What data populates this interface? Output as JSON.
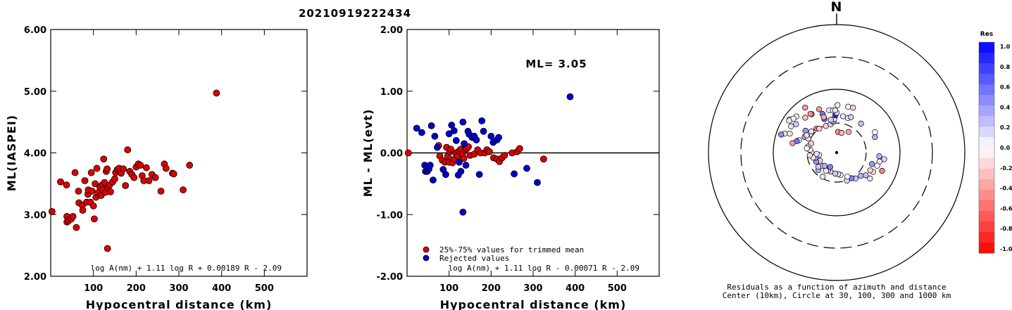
{
  "title": "20210919222434",
  "chart_data": [
    {
      "type": "scatter",
      "ylabel": "ML(IASPEI)",
      "xlabel": "Hypocentral distance (km)",
      "xlim": [
        0,
        600
      ],
      "ylim": [
        2.0,
        6.0
      ],
      "xticks": [
        "100",
        "200",
        "300",
        "400",
        "500"
      ],
      "yticks": [
        "2.00",
        "3.00",
        "4.00",
        "5.00",
        "6.00"
      ],
      "formula": "log A(nm) + 1.11 log R + 0.00189 R - 2.09",
      "color": "#dd0000",
      "points": [
        [
          3,
          3.05
        ],
        [
          23,
          3.53
        ],
        [
          37,
          3.48
        ],
        [
          38,
          2.97
        ],
        [
          38,
          2.88
        ],
        [
          42,
          2.9
        ],
        [
          48,
          2.93
        ],
        [
          52,
          2.97
        ],
        [
          57,
          3.68
        ],
        [
          60,
          2.79
        ],
        [
          65,
          3.38
        ],
        [
          66,
          3.19
        ],
        [
          74,
          3.15
        ],
        [
          75,
          3.07
        ],
        [
          80,
          3.55
        ],
        [
          84,
          3.2
        ],
        [
          87,
          3.33
        ],
        [
          88,
          3.4
        ],
        [
          93,
          3.2
        ],
        [
          95,
          3.68
        ],
        [
          97,
          3.38
        ],
        [
          100,
          3.14
        ],
        [
          102,
          2.93
        ],
        [
          104,
          3.5
        ],
        [
          106,
          3.28
        ],
        [
          108,
          3.75
        ],
        [
          112,
          3.36
        ],
        [
          115,
          3.45
        ],
        [
          118,
          3.31
        ],
        [
          120,
          3.48
        ],
        [
          122,
          3.4
        ],
        [
          124,
          3.9
        ],
        [
          126,
          3.52
        ],
        [
          128,
          3.36
        ],
        [
          130,
          3.7
        ],
        [
          132,
          3.74
        ],
        [
          134,
          3.43
        ],
        [
          138,
          3.48
        ],
        [
          140,
          3.37
        ],
        [
          145,
          3.53
        ],
        [
          150,
          3.58
        ],
        [
          152,
          3.68
        ],
        [
          156,
          3.73
        ],
        [
          160,
          3.75
        ],
        [
          165,
          3.67
        ],
        [
          170,
          3.74
        ],
        [
          175,
          3.47
        ],
        [
          180,
          4.05
        ],
        [
          185,
          3.7
        ],
        [
          190,
          3.65
        ],
        [
          195,
          3.6
        ],
        [
          200,
          3.77
        ],
        [
          205,
          3.82
        ],
        [
          210,
          3.8
        ],
        [
          214,
          3.63
        ],
        [
          218,
          3.55
        ],
        [
          224,
          3.76
        ],
        [
          230,
          3.55
        ],
        [
          237,
          3.65
        ],
        [
          245,
          3.6
        ],
        [
          258,
          3.38
        ],
        [
          266,
          3.82
        ],
        [
          270,
          3.75
        ],
        [
          285,
          3.67
        ],
        [
          288,
          3.66
        ],
        [
          310,
          3.4
        ],
        [
          325,
          3.8
        ],
        [
          388,
          4.97
        ],
        [
          133,
          2.45
        ]
      ]
    },
    {
      "type": "scatter",
      "ylabel": "ML - ML(evt)",
      "xlabel": "Hypocentral distance (km)",
      "xlim": [
        0,
        600
      ],
      "ylim": [
        -2.0,
        2.0
      ],
      "xticks": [
        "100",
        "200",
        "300",
        "400",
        "500"
      ],
      "yticks": [
        "-2.00",
        "-1.00",
        "0.00",
        "1.00",
        "2.00"
      ],
      "annotation": "ML= 3.05",
      "formula": "log A(nm) + 1.11 log R - 0.00071 R - 2.09",
      "legend": [
        "25%-75% values for trimmed mean",
        "Rejected values"
      ],
      "series": [
        {
          "name": "25%-75% values for trimmed mean",
          "color": "#dd0000",
          "points": [
            [
              3,
              0.0
            ],
            [
              75,
              0.12
            ],
            [
              78,
              -0.05
            ],
            [
              84,
              -0.12
            ],
            [
              90,
              -0.15
            ],
            [
              94,
              0.09
            ],
            [
              97,
              -0.05
            ],
            [
              100,
              -0.15
            ],
            [
              102,
              0.02
            ],
            [
              104,
              0.06
            ],
            [
              108,
              -0.16
            ],
            [
              112,
              -0.1
            ],
            [
              116,
              0.0
            ],
            [
              120,
              -0.05
            ],
            [
              124,
              0.03
            ],
            [
              128,
              0.06
            ],
            [
              132,
              -0.02
            ],
            [
              135,
              -0.09
            ],
            [
              138,
              0.05
            ],
            [
              142,
              0.07
            ],
            [
              146,
              0.1
            ],
            [
              150,
              -0.04
            ],
            [
              160,
              -0.02
            ],
            [
              168,
              0.05
            ],
            [
              175,
              0.0
            ],
            [
              185,
              0.0
            ],
            [
              190,
              0.05
            ],
            [
              196,
              0.02
            ],
            [
              206,
              -0.08
            ],
            [
              214,
              -0.1
            ],
            [
              220,
              -0.14
            ],
            [
              226,
              -0.08
            ],
            [
              232,
              -0.04
            ],
            [
              250,
              0.0
            ],
            [
              262,
              0.02
            ],
            [
              268,
              0.07
            ],
            [
              325,
              -0.1
            ]
          ]
        },
        {
          "name": "Rejected values",
          "color": "#0000cc",
          "points": [
            [
              23,
              0.4
            ],
            [
              35,
              0.33
            ],
            [
              42,
              -0.2
            ],
            [
              44,
              -0.3
            ],
            [
              48,
              -0.3
            ],
            [
              52,
              -0.26
            ],
            [
              55,
              -0.2
            ],
            [
              58,
              0.44
            ],
            [
              62,
              -0.44
            ],
            [
              66,
              0.27
            ],
            [
              72,
              0.09
            ],
            [
              86,
              -0.27
            ],
            [
              92,
              -0.35
            ],
            [
              100,
              0.31
            ],
            [
              106,
              0.45
            ],
            [
              112,
              0.36
            ],
            [
              117,
              0.2
            ],
            [
              124,
              -0.15
            ],
            [
              128,
              -0.3
            ],
            [
              133,
              0.5
            ],
            [
              136,
              0.15
            ],
            [
              140,
              -0.2
            ],
            [
              145,
              0.35
            ],
            [
              148,
              0.3
            ],
            [
              155,
              0.25
            ],
            [
              160,
              0.27
            ],
            [
              165,
              0.21
            ],
            [
              172,
              -0.35
            ],
            [
              178,
              0.52
            ],
            [
              182,
              0.35
            ],
            [
              200,
              0.27
            ],
            [
              205,
              0.17
            ],
            [
              214,
              0.21
            ],
            [
              218,
              0.25
            ],
            [
              255,
              -0.34
            ],
            [
              285,
              -0.25
            ],
            [
              310,
              -0.48
            ],
            [
              388,
              0.91
            ],
            [
              133,
              -0.96
            ],
            [
              122,
              -0.36
            ]
          ]
        }
      ]
    },
    {
      "type": "polar",
      "north_label": "N",
      "caption": [
        "Residuals as a function of azimuth and distance",
        "Center (10km), Circle at 30, 100, 300 and 1000 km"
      ],
      "colorbar": {
        "label": "Res",
        "ticks": [
          "1.0",
          "0.8",
          "0.6",
          "0.4",
          "0.2",
          "0.0",
          "-0.2",
          "-0.4",
          "-0.6",
          "-0.8",
          "-1.0"
        ],
        "positive_color": "#0000ff",
        "negative_color": "#ff0000"
      },
      "stations": [
        [
          -55,
          218,
          0.2
        ],
        [
          -42,
          203,
          -0.25
        ],
        [
          -33,
          196,
          -0.55
        ],
        [
          -60,
          236,
          0.1
        ],
        [
          -10,
          180,
          0.1
        ],
        [
          -48,
          245,
          -0.1
        ],
        [
          -35,
          250,
          -0.4
        ],
        [
          -55,
          266,
          -0.1
        ],
        [
          -70,
          252,
          -0.1
        ],
        [
          -72,
          270,
          0.45
        ],
        [
          -55,
          150,
          0.4
        ],
        [
          -64,
          136,
          0.35
        ],
        [
          -60,
          128,
          0.15
        ],
        [
          -50,
          120,
          0.1
        ],
        [
          -40,
          110,
          -0.55
        ],
        [
          -36,
          100,
          -0.2
        ],
        [
          -22,
          96,
          -0.2
        ],
        [
          -12,
          97,
          0.15
        ],
        [
          -6,
          108,
          -0.35
        ],
        [
          -20,
          136,
          0.6
        ],
        [
          -8,
          114,
          0.2
        ],
        [
          -4,
          125,
          -0.05
        ],
        [
          -2,
          145,
          0.85
        ],
        [
          -5,
          175,
          -0.1
        ],
        [
          0,
          161,
          0.1
        ],
        [
          10,
          143,
          0.1
        ],
        [
          18,
          140,
          -0.1
        ],
        [
          22,
          151,
          0.2
        ],
        [
          40,
          149,
          0.25
        ],
        [
          62,
          182,
          0.0
        ],
        [
          68,
          169,
          0.3
        ],
        [
          95,
          178,
          0.3
        ],
        [
          102,
          184,
          0.05
        ],
        [
          108,
          177,
          0.0
        ],
        [
          118,
          170,
          -0.1
        ],
        [
          128,
          175,
          0.1
        ],
        [
          98,
          209,
          0.15
        ],
        [
          112,
          215,
          -0.5
        ],
        [
          108,
          145,
          0.4
        ],
        [
          118,
          150,
          -0.2
        ],
        [
          128,
          144,
          0.25
        ],
        [
          134,
          124,
          0.3
        ],
        [
          144,
          115,
          0.2
        ],
        [
          150,
          101,
          0.5
        ],
        [
          160,
          102,
          0.15
        ],
        [
          156,
          85,
          0.0
        ],
        [
          170,
          68,
          0.05
        ],
        [
          176,
          63,
          0.15
        ],
        [
          184,
          60,
          0.2
        ],
        [
          198,
          55,
          -0.2
        ],
        [
          206,
          52,
          0.1
        ],
        [
          210,
          60,
          -0.1
        ],
        [
          226,
          52,
          0.0
        ],
        [
          244,
          48,
          -0.2
        ],
        [
          262,
          44,
          -0.1
        ],
        [
          222,
          45,
          0.3
        ],
        [
          204,
          35,
          0.5
        ],
        [
          210,
          92,
          0.1
        ],
        [
          226,
          80,
          0.3
        ],
        [
          232,
          70,
          0.2
        ],
        [
          246,
          66,
          0.4
        ],
        [
          256,
          62,
          0.4
        ],
        [
          266,
          55,
          0.1
        ],
        [
          258,
          74,
          0.05
        ],
        [
          270,
          80,
          -0.05
        ],
        [
          264,
          88,
          -0.15
        ],
        [
          276,
          86,
          0.0
        ],
        [
          282,
          98,
          0.15
        ],
        [
          290,
          88,
          -0.2
        ],
        [
          278,
          103,
          0.0
        ],
        [
          296,
          112,
          0.1
        ],
        [
          300,
          130,
          -0.15
        ],
        [
          288,
          160,
          0.0
        ],
        [
          286,
          170,
          0.55
        ],
        [
          282,
          192,
          -0.4
        ],
        [
          292,
          224,
          -0.1
        ],
        [
          308,
          251,
          0.0
        ],
        [
          304,
          264,
          -0.1
        ],
        [
          326,
          202,
          -0.45
        ],
        [
          338,
          202,
          -0.4
        ],
        [
          340,
          168,
          0.55
        ],
        [
          358,
          176,
          0.1
        ],
        [
          14,
          205,
          0.0
        ],
        [
          20,
          208,
          -0.2
        ],
        [
          1,
          206,
          0.05
        ],
        [
          4,
          58,
          -0.45
        ],
        [
          14,
          56,
          -0.3
        ],
        [
          30,
          73,
          -0.35
        ],
        [
          340,
          148,
          -0.35
        ],
        [
          350,
          122,
          0.2
        ]
      ]
    }
  ]
}
